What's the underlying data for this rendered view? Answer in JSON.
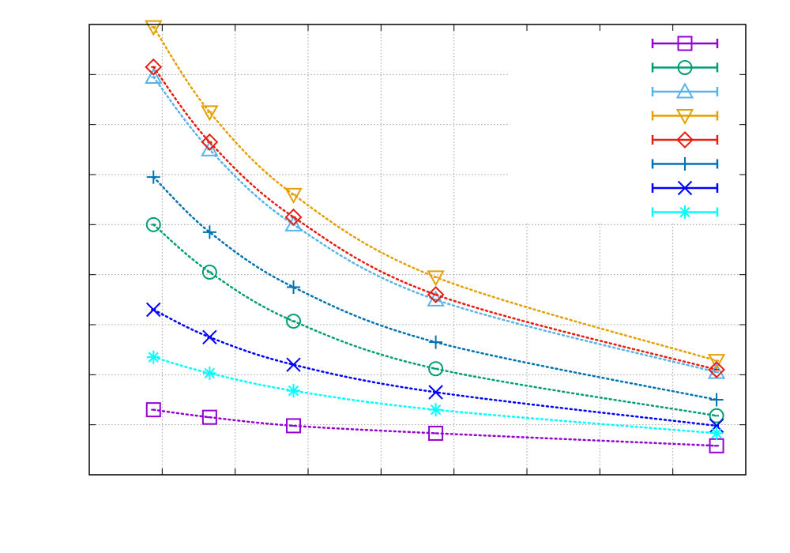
{
  "chart_data": {
    "type": "line",
    "title": "",
    "xlabel": "",
    "ylabel": "",
    "grid": true,
    "legend_position": "top-right",
    "xlim": [
      0,
      9
    ],
    "ylim": [
      0,
      9
    ],
    "series": [
      {
        "name": "",
        "color": "#9400d3",
        "marker": "square",
        "x": [
          0.88,
          1.65,
          2.8,
          4.75,
          8.6
        ],
        "y": [
          1.3,
          1.15,
          0.98,
          0.83,
          0.58
        ]
      },
      {
        "name": "",
        "color": "#009e73",
        "marker": "circle",
        "x": [
          0.88,
          1.65,
          2.8,
          4.75,
          8.6
        ],
        "y": [
          5.0,
          4.05,
          3.07,
          2.12,
          1.18
        ]
      },
      {
        "name": "",
        "color": "#56b4e9",
        "marker": "triangle-up",
        "x": [
          0.88,
          1.65,
          2.8,
          4.75,
          8.6
        ],
        "y": [
          7.95,
          6.5,
          5.0,
          3.5,
          2.05
        ]
      },
      {
        "name": "",
        "color": "#e69f00",
        "marker": "triangle-down",
        "x": [
          0.88,
          1.65,
          2.8,
          4.75,
          8.6
        ],
        "y": [
          8.95,
          7.25,
          5.6,
          3.95,
          2.28
        ]
      },
      {
        "name": "",
        "color": "#e51e10",
        "marker": "diamond",
        "x": [
          0.88,
          1.65,
          2.8,
          4.75,
          8.6
        ],
        "y": [
          8.15,
          6.65,
          5.15,
          3.6,
          2.1
        ]
      },
      {
        "name": "",
        "color": "#0072b2",
        "marker": "plus",
        "x": [
          0.88,
          1.65,
          2.8,
          4.75,
          8.6
        ],
        "y": [
          5.95,
          4.85,
          3.75,
          2.65,
          1.5
        ]
      },
      {
        "name": "",
        "color": "#0000ff",
        "marker": "cross",
        "x": [
          0.88,
          1.65,
          2.8,
          4.75,
          8.6
        ],
        "y": [
          3.3,
          2.75,
          2.2,
          1.65,
          0.98
        ]
      },
      {
        "name": "",
        "color": "#00ffff",
        "marker": "star",
        "x": [
          0.88,
          1.65,
          2.8,
          4.75,
          8.6
        ],
        "y": [
          2.35,
          2.03,
          1.68,
          1.3,
          0.83
        ]
      }
    ]
  }
}
